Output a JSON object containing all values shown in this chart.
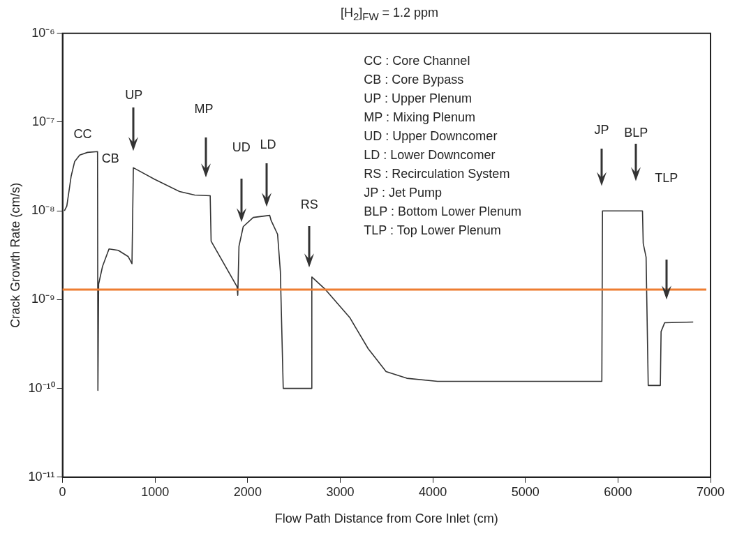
{
  "chart_data": {
    "type": "line",
    "title": "[H$_{2}$]$_{FW}$ = 1.2 ppm",
    "xlabel": "Flow Path Distance from Core Inlet (cm)",
    "ylabel": "Crack Growth Rate (cm/s)",
    "x": [
      20,
      46,
      93,
      131,
      185,
      270,
      378,
      382,
      390,
      432,
      502,
      602,
      710,
      750,
      765,
      988,
      1265,
      1427,
      1595,
      1605,
      1885,
      1893,
      1906,
      1952,
      2060,
      2238,
      2253,
      2323,
      2353,
      2384,
      2690,
      2693,
      2840,
      3102,
      3302,
      3495,
      3719,
      4051,
      5826,
      5833,
      6265,
      6273,
      6304,
      6327,
      6458,
      6466,
      6505,
      6813
    ],
    "series": [
      {
        "color": "#333333",
        "values": [
          1e-08,
          1.13e-08,
          2.46e-08,
          3.6e-08,
          4.25e-08,
          4.56e-08,
          4.65e-08,
          9.5e-11,
          1.5e-09,
          2.37e-09,
          3.72e-09,
          3.59e-09,
          3.05e-09,
          2.54e-09,
          3.06e-08,
          2.29e-08,
          1.65e-08,
          1.51e-08,
          1.48e-08,
          4.55e-09,
          1.4e-09,
          1.12e-09,
          4e-09,
          6.65e-09,
          8.43e-09,
          8.9e-09,
          7.8e-09,
          5.45e-09,
          2.08e-09,
          1e-10,
          1e-10,
          1.8e-09,
          1.3e-09,
          6.3e-10,
          2.8e-10,
          1.55e-10,
          1.3e-10,
          1.2e-10,
          1.2e-10,
          1e-08,
          1e-08,
          4.3e-09,
          3e-09,
          1.08e-10,
          1.08e-10,
          4.37e-10,
          5.5e-10,
          5.6e-10
        ]
      }
    ],
    "log": "y",
    "xlim": [
      0,
      7000
    ],
    "xticks": [
      0,
      1000,
      2000,
      3000,
      4000,
      5000,
      6000,
      7000
    ],
    "ylim": [
      1e-11,
      1e-06
    ],
    "yticks": [
      {
        "value": 1e-11,
        "label": "10⁻¹¹"
      },
      {
        "value": 1e-10,
        "label": "10⁻¹⁰"
      },
      {
        "value": 1e-09,
        "label": "10⁻⁹"
      },
      {
        "value": 1e-08,
        "label": "10⁻⁸"
      },
      {
        "value": 1e-07,
        "label": "10⁻⁷"
      },
      {
        "value": 1e-06,
        "label": "10⁻⁶"
      }
    ],
    "grid": false,
    "legend": false,
    "marker": "none",
    "line_style": "solid",
    "ref_lines": [
      {
        "axis": "y",
        "value": 1.3e-09,
        "color": "#ee7d31"
      }
    ],
    "annotations": [
      "CC",
      "CB",
      "UP",
      "MP",
      "UD",
      "LD",
      "RS",
      "JP",
      "BLP",
      "TLP",
      "CC : Core Channel",
      "CB : Core Bypass",
      "UP : Upper Plenum",
      "MP : Mixing Plenum",
      "UD : Upper Downcomer",
      "LD : Lower Downcomer",
      "RS : Recirculation System",
      "JP : Jet Pump",
      "BLP : Bottom Lower Plenum",
      "TLP : Top Lower Plenum"
    ]
  }
}
